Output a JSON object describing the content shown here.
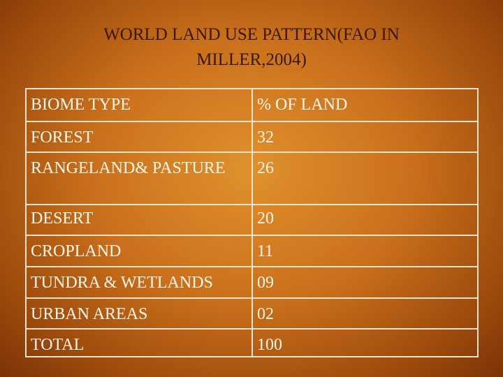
{
  "title": {
    "lines": [
      "WORLD LAND USE PATTERN(FAO IN",
      "MILLER,2004)"
    ]
  },
  "table": {
    "header": [
      "BIOME TYPE",
      "% OF LAND"
    ],
    "rows": [
      [
        "FOREST",
        "32"
      ],
      [
        "RANGELAND& PASTURE",
        "26"
      ],
      [
        "DESERT",
        "20"
      ],
      [
        "CROPLAND",
        "11"
      ],
      [
        "TUNDRA & WETLANDS",
        "09"
      ],
      [
        "URBAN AREAS",
        "02"
      ],
      [
        "TOTAL",
        "100"
      ]
    ]
  }
}
